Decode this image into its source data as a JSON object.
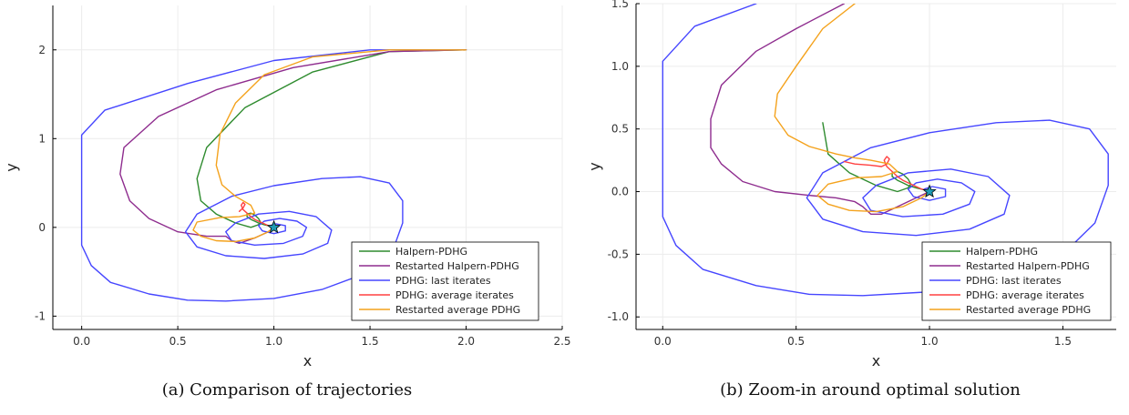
{
  "captions": {
    "left": "(a) Comparison of trajectories",
    "right": "(b) Zoom-in around optimal solution"
  },
  "colors": {
    "Halpern-PDHG": "#2e8b2e",
    "Restarted Halpern-PDHG": "#8e2c8e",
    "PDHG: last iterates": "#4646ff",
    "PDHG: average iterates": "#ff4040",
    "Restarted average PDHG": "#f4a21c",
    "marker": "#1f9bb5"
  },
  "chart_data": [
    {
      "type": "line",
      "xlabel": "x",
      "ylabel": "y",
      "xlim": [
        -0.15,
        2.5
      ],
      "ylim": [
        -1.15,
        2.5
      ],
      "xticks": [
        0.0,
        0.5,
        1.0,
        1.5,
        2.0,
        2.5
      ],
      "xtick_labels": [
        "0.0",
        "0.5",
        "1.0",
        "1.5",
        "2.0",
        "2.5"
      ],
      "yticks": [
        -1,
        0,
        1,
        2
      ],
      "ytick_labels": [
        "-1",
        "0",
        "1",
        "2"
      ],
      "grid": true,
      "legend": "bottom-right",
      "optimum": [
        1.0,
        0.0
      ],
      "series": [
        {
          "name": "Halpern-PDHG",
          "x": [
            2.0,
            1.6,
            1.2,
            0.85,
            0.65,
            0.6,
            0.62,
            0.7,
            0.8,
            0.88,
            0.92,
            0.93,
            0.92,
            0.9,
            0.88,
            0.86,
            0.86,
            0.88,
            0.9,
            0.92,
            0.95,
            0.97,
            0.99,
            1.0
          ],
          "y": [
            2.0,
            1.98,
            1.75,
            1.35,
            0.9,
            0.55,
            0.3,
            0.15,
            0.05,
            0.0,
            0.03,
            0.06,
            0.1,
            0.14,
            0.16,
            0.15,
            0.12,
            0.09,
            0.07,
            0.05,
            0.03,
            0.02,
            0.01,
            0.0
          ]
        },
        {
          "name": "Restarted Halpern-PDHG",
          "x": [
            2.0,
            1.6,
            1.1,
            0.7,
            0.4,
            0.22,
            0.2,
            0.25,
            0.35,
            0.5,
            0.65,
            0.75,
            0.78,
            0.82,
            0.9,
            0.97,
            1.0
          ],
          "y": [
            2.0,
            1.98,
            1.8,
            1.55,
            1.25,
            0.9,
            0.6,
            0.3,
            0.1,
            -0.05,
            -0.1,
            -0.1,
            -0.15,
            -0.18,
            -0.12,
            -0.05,
            0.0
          ]
        },
        {
          "name": "PDHG: last iterates",
          "x": [
            2.0,
            1.5,
            1.0,
            0.55,
            0.12,
            0.0,
            0.0,
            0.05,
            0.15,
            0.35,
            0.55,
            0.75,
            1.0,
            1.25,
            1.5,
            1.62,
            1.67,
            1.67,
            1.6,
            1.45,
            1.25,
            1.0,
            0.78,
            0.6,
            0.54,
            0.6,
            0.75,
            0.95,
            1.15,
            1.28,
            1.3,
            1.22,
            1.08,
            0.92,
            0.8,
            0.75,
            0.78,
            0.9,
            1.05,
            1.15,
            1.17,
            1.12,
            1.03,
            0.95,
            0.92,
            0.94,
            1.0,
            1.06,
            1.06,
            1.01,
            0.98,
            1.0
          ],
          "y": [
            2.0,
            2.0,
            1.88,
            1.62,
            1.32,
            1.04,
            -0.2,
            -0.43,
            -0.62,
            -0.75,
            -0.82,
            -0.83,
            -0.8,
            -0.7,
            -0.5,
            -0.25,
            0.05,
            0.3,
            0.5,
            0.57,
            0.55,
            0.47,
            0.35,
            0.15,
            -0.05,
            -0.22,
            -0.32,
            -0.35,
            -0.3,
            -0.18,
            -0.03,
            0.12,
            0.18,
            0.15,
            0.05,
            -0.05,
            -0.15,
            -0.2,
            -0.18,
            -0.1,
            0.0,
            0.07,
            0.1,
            0.07,
            0.02,
            -0.04,
            -0.07,
            -0.04,
            0.02,
            0.04,
            0.02,
            0.0
          ]
        },
        {
          "name": "PDHG: average iterates",
          "x": [
            0.82,
            0.84,
            0.85,
            0.84,
            0.83,
            0.84,
            0.86,
            0.88,
            0.9,
            0.93,
            0.95,
            0.97,
            0.99,
            1.0
          ],
          "y": [
            0.18,
            0.22,
            0.26,
            0.28,
            0.25,
            0.2,
            0.16,
            0.12,
            0.09,
            0.06,
            0.04,
            0.02,
            0.01,
            0.0
          ]
        },
        {
          "name": "Restarted average PDHG",
          "x": [
            2.0,
            1.6,
            1.2,
            0.95,
            0.8,
            0.72,
            0.7,
            0.73,
            0.8,
            0.88,
            0.9,
            0.82,
            0.72,
            0.6,
            0.58,
            0.62,
            0.7,
            0.8,
            0.9,
            0.97,
            1.0
          ],
          "y": [
            2.0,
            2.0,
            1.92,
            1.72,
            1.4,
            1.05,
            0.7,
            0.48,
            0.35,
            0.25,
            0.16,
            0.12,
            0.11,
            0.06,
            -0.03,
            -0.1,
            -0.15,
            -0.16,
            -0.12,
            -0.05,
            0.0
          ]
        }
      ]
    },
    {
      "type": "line",
      "xlabel": "x",
      "ylabel": "y",
      "xlim": [
        -0.1,
        1.7
      ],
      "ylim": [
        -1.1,
        1.5
      ],
      "xticks": [
        0.0,
        0.5,
        1.0,
        1.5
      ],
      "xtick_labels": [
        "0.0",
        "0.5",
        "1.0",
        "1.5"
      ],
      "yticks": [
        -1.0,
        -0.5,
        0.0,
        0.5,
        1.0,
        1.5
      ],
      "ytick_labels": [
        "-1.0",
        "-0.5",
        "0.0",
        "0.5",
        "1.0",
        "1.5"
      ],
      "grid": true,
      "legend": "bottom-right",
      "optimum": [
        1.0,
        0.0
      ],
      "series": [
        {
          "name": "Halpern-PDHG",
          "x": [
            0.6,
            0.62,
            0.7,
            0.8,
            0.88,
            0.92,
            0.93,
            0.92,
            0.9,
            0.88,
            0.86,
            0.86,
            0.88,
            0.9,
            0.92,
            0.95,
            0.97,
            0.99,
            1.0
          ],
          "y": [
            0.55,
            0.3,
            0.15,
            0.05,
            0.0,
            0.03,
            0.06,
            0.1,
            0.14,
            0.16,
            0.15,
            0.12,
            0.09,
            0.07,
            0.05,
            0.03,
            0.02,
            0.01,
            0.0
          ]
        },
        {
          "name": "Restarted Halpern-PDHG",
          "x": [
            0.68,
            0.5,
            0.35,
            0.22,
            0.18,
            0.18,
            0.22,
            0.3,
            0.42,
            0.55,
            0.65,
            0.72,
            0.75,
            0.78,
            0.82,
            0.88,
            0.95,
            1.0
          ],
          "y": [
            1.5,
            1.3,
            1.12,
            0.85,
            0.58,
            0.35,
            0.22,
            0.08,
            0.0,
            -0.03,
            -0.05,
            -0.08,
            -0.12,
            -0.18,
            -0.18,
            -0.12,
            -0.05,
            0.0
          ]
        },
        {
          "name": "PDHG: last iterates",
          "x": [
            0.35,
            0.12,
            0.0,
            0.0,
            0.05,
            0.15,
            0.35,
            0.55,
            0.75,
            1.0,
            1.25,
            1.5,
            1.62,
            1.67,
            1.67,
            1.6,
            1.45,
            1.25,
            1.0,
            0.78,
            0.6,
            0.54,
            0.6,
            0.75,
            0.95,
            1.15,
            1.28,
            1.3,
            1.22,
            1.08,
            0.92,
            0.8,
            0.75,
            0.78,
            0.9,
            1.05,
            1.15,
            1.17,
            1.12,
            1.03,
            0.95,
            0.92,
            0.94,
            1.0,
            1.06,
            1.06,
            1.01,
            0.98,
            1.0
          ],
          "y": [
            1.5,
            1.32,
            1.04,
            -0.2,
            -0.43,
            -0.62,
            -0.75,
            -0.82,
            -0.83,
            -0.8,
            -0.7,
            -0.5,
            -0.25,
            0.05,
            0.3,
            0.5,
            0.57,
            0.55,
            0.47,
            0.35,
            0.15,
            -0.05,
            -0.22,
            -0.32,
            -0.35,
            -0.3,
            -0.18,
            -0.03,
            0.12,
            0.18,
            0.15,
            0.05,
            -0.05,
            -0.15,
            -0.2,
            -0.18,
            -0.1,
            0.0,
            0.07,
            0.1,
            0.07,
            0.02,
            -0.04,
            -0.07,
            -0.04,
            0.02,
            0.04,
            0.02,
            0.0
          ]
        },
        {
          "name": "PDHG: average iterates",
          "x": [
            0.68,
            0.72,
            0.78,
            0.82,
            0.84,
            0.85,
            0.84,
            0.83,
            0.84,
            0.86,
            0.88,
            0.9,
            0.93,
            0.95,
            0.97,
            0.99,
            1.0
          ],
          "y": [
            0.24,
            0.22,
            0.21,
            0.2,
            0.22,
            0.26,
            0.28,
            0.25,
            0.2,
            0.16,
            0.12,
            0.09,
            0.06,
            0.04,
            0.02,
            0.01,
            0.0
          ]
        },
        {
          "name": "Restarted average PDHG",
          "x": [
            0.72,
            0.6,
            0.5,
            0.43,
            0.42,
            0.47,
            0.55,
            0.65,
            0.72,
            0.78,
            0.85,
            0.88,
            0.82,
            0.72,
            0.62,
            0.58,
            0.62,
            0.7,
            0.8,
            0.9,
            0.97,
            1.0
          ],
          "y": [
            1.5,
            1.3,
            1.0,
            0.78,
            0.6,
            0.45,
            0.36,
            0.3,
            0.27,
            0.25,
            0.22,
            0.16,
            0.12,
            0.11,
            0.06,
            -0.03,
            -0.1,
            -0.15,
            -0.16,
            -0.12,
            -0.05,
            0.0
          ]
        }
      ]
    }
  ]
}
